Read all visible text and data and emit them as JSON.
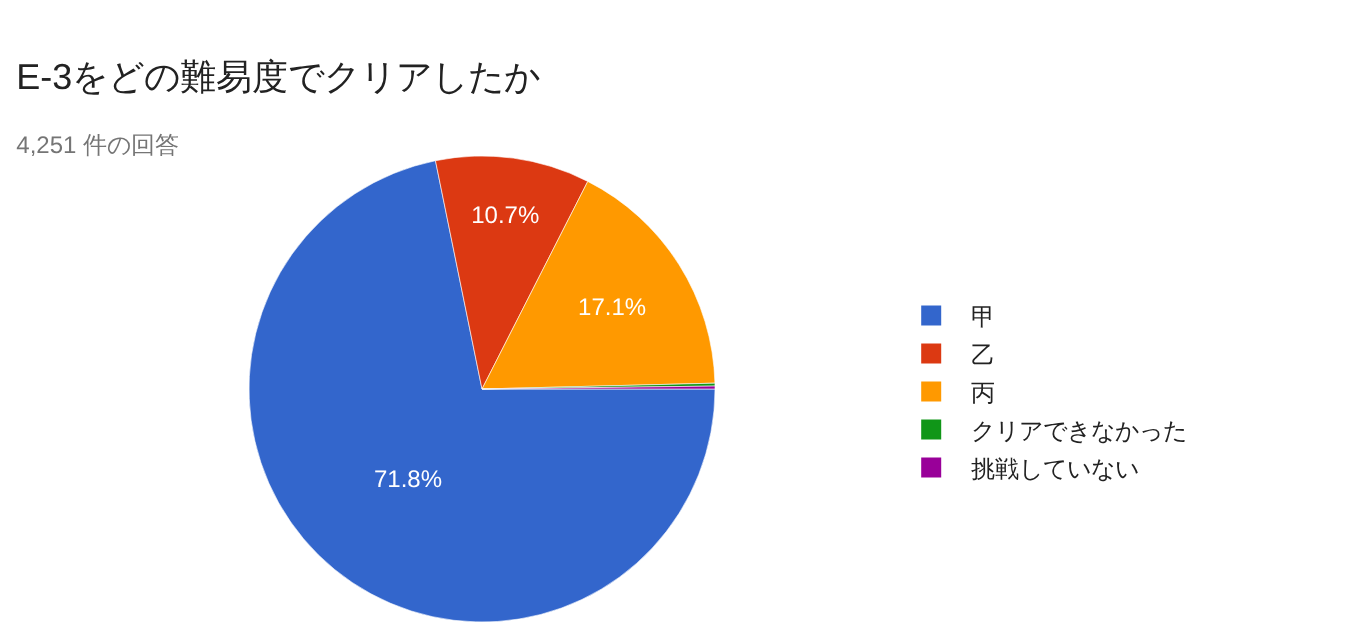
{
  "chart_data": {
    "type": "pie",
    "title": "E-3をどの難易度でクリアしたか",
    "subtitle": "4,251 件の回答",
    "categories": [
      "甲",
      "乙",
      "丙",
      "クリアできなかった",
      "挑戦していない"
    ],
    "values": [
      71.8,
      10.7,
      17.1,
      0.2,
      0.2
    ],
    "colors": [
      "#3366cc",
      "#dc3912",
      "#ff9900",
      "#109618",
      "#990099"
    ],
    "value_labels": [
      "71.8%",
      "10.7%",
      "17.1%",
      null,
      null
    ],
    "legend": "right"
  }
}
